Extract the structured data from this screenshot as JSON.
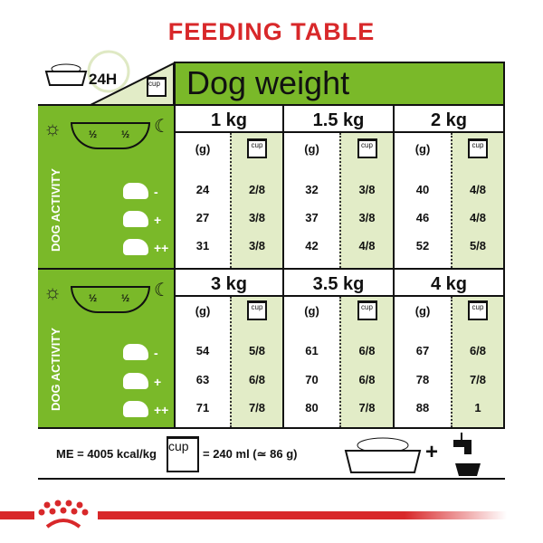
{
  "title": "FEEDING TABLE",
  "clock_label": "24H",
  "cup_label": "cup",
  "dog_weight_label": "Dog weight",
  "activity_label": "DOG ACTIVITY",
  "split_label": "½",
  "activity_signs": [
    "-",
    "+",
    "++"
  ],
  "grams_label": "(g)",
  "colors": {
    "title": "#d8282a",
    "green": "#7ab929",
    "light_green": "#e2ecc7"
  },
  "blocks": [
    {
      "weights": [
        {
          "weight": "1 kg",
          "grams": [
            "24",
            "27",
            "31"
          ],
          "cups": [
            "2/8",
            "3/8",
            "3/8"
          ]
        },
        {
          "weight": "1.5 kg",
          "grams": [
            "32",
            "37",
            "42"
          ],
          "cups": [
            "3/8",
            "3/8",
            "4/8"
          ]
        },
        {
          "weight": "2 kg",
          "grams": [
            "40",
            "46",
            "52"
          ],
          "cups": [
            "4/8",
            "4/8",
            "5/8"
          ]
        }
      ]
    },
    {
      "weights": [
        {
          "weight": "3 kg",
          "grams": [
            "54",
            "63",
            "71"
          ],
          "cups": [
            "5/8",
            "6/8",
            "7/8"
          ]
        },
        {
          "weight": "3.5 kg",
          "grams": [
            "61",
            "70",
            "80"
          ],
          "cups": [
            "6/8",
            "6/8",
            "7/8"
          ]
        },
        {
          "weight": "4 kg",
          "grams": [
            "67",
            "78",
            "88"
          ],
          "cups": [
            "6/8",
            "7/8",
            "1"
          ]
        }
      ]
    }
  ],
  "footer": {
    "energy": "ME = 4005 kcal/kg",
    "cup_equiv": "= 240 ml (≃ 86 g)",
    "plus": "+"
  }
}
